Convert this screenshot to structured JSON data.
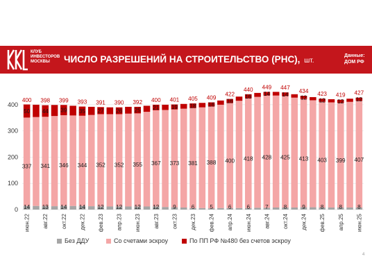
{
  "header": {
    "club_lines": [
      "КЛУБ",
      "ИНВЕСТОРОВ",
      "МОСКВЫ"
    ],
    "title": "ЧИСЛО РАЗРЕШЕНИЙ НА СТРОИТЕЛЬСТВО (РНС),",
    "unit": "шт.",
    "source_label": "Данные:",
    "source_value": "ДОМ РФ"
  },
  "page_number": "4",
  "colors": {
    "brand": "#c4161c",
    "bez_ddu": "#a6a6a6",
    "escrow": "#f4a6a6",
    "pp480": "#c00000",
    "total_label": "#c00000"
  },
  "chart_data": {
    "type": "bar",
    "stacked": true,
    "title": "ЧИСЛО РАЗРЕШЕНИЙ НА СТРОИТЕЛЬСТВО (РНС), шт.",
    "xlabel": "",
    "ylabel": "",
    "ylim": [
      0,
      450
    ],
    "yticks": [
      0,
      100,
      200,
      300,
      400
    ],
    "grid": true,
    "legend_position": "bottom",
    "categories": [
      "июн.22",
      "июл.22",
      "авг.22",
      "сен.22",
      "окт.22",
      "ноя.22",
      "дек.22",
      "янв.23",
      "фев.23",
      "мар.23",
      "апр.23",
      "май.23",
      "июн.23",
      "июл.23",
      "авг.23",
      "сен.23",
      "окт.23",
      "ноя.23",
      "дек.23",
      "янв.24",
      "фев.24",
      "мар.24",
      "апр.24",
      "май.24",
      "июн.24",
      "июл.24",
      "авг.24",
      "сен.24",
      "окт.24",
      "ноя.24",
      "дек.24",
      "янв.25",
      "фев.25",
      "мар.25",
      "апр.25",
      "май.25",
      "июн.25"
    ],
    "tick_labels_shown": [
      "июн.22",
      "авг.22",
      "окт.22",
      "дек.22",
      "фев.23",
      "апр.23",
      "июн.23",
      "авг.23",
      "окт.23",
      "дек.23",
      "фев.24",
      "апр.24",
      "июн.24",
      "авг.24",
      "окт.24",
      "дек.24",
      "фев.25",
      "апр.25",
      "июн.25"
    ],
    "series": [
      {
        "name": "Без ДДУ",
        "color": "#a6a6a6",
        "values": [
          14,
          14,
          13,
          13,
          14,
          14,
          14,
          13,
          12,
          12,
          12,
          12,
          12,
          12,
          12,
          10,
          9,
          8,
          6,
          6,
          5,
          6,
          6,
          6,
          6,
          7,
          7,
          8,
          8,
          8,
          9,
          9,
          8,
          8,
          8,
          8,
          8
        ]
      },
      {
        "name": "Со счетами эскроу",
        "color": "#f4a6a6",
        "values": [
          337,
          339,
          341,
          344,
          346,
          345,
          344,
          348,
          352,
          352,
          352,
          354,
          355,
          361,
          367,
          370,
          373,
          377,
          381,
          384,
          388,
          394,
          400,
          409,
          418,
          423,
          428,
          427,
          425,
          419,
          413,
          408,
          403,
          401,
          399,
          403,
          407
        ]
      },
      {
        "name": "По ПП РФ №480 без счетов эскроу",
        "color": "#c00000",
        "values": [
          50,
          47,
          44,
          42,
          39,
          37,
          35,
          31,
          27,
          26,
          26,
          26,
          25,
          23,
          21,
          20,
          19,
          18,
          18,
          17,
          16,
          16,
          16,
          16,
          16,
          15,
          14,
          14,
          14,
          13,
          12,
          12,
          12,
          12,
          12,
          12,
          12
        ]
      }
    ],
    "totals": [
      400,
      400,
      398,
      399,
      399,
      396,
      393,
      392,
      391,
      390,
      390,
      392,
      392,
      396,
      400,
      400,
      401,
      403,
      405,
      407,
      409,
      416,
      422,
      431,
      440,
      445,
      449,
      449,
      447,
      440,
      434,
      429,
      423,
      421,
      419,
      423,
      427
    ],
    "labels_shown_every": 2,
    "data_labels": {
      "totals": [
        400,
        398,
        399,
        393,
        391,
        390,
        392,
        400,
        401,
        405,
        409,
        422,
        440,
        449,
        447,
        434,
        423,
        419,
        427
      ],
      "bez_ddu": [
        14,
        13,
        14,
        14,
        12,
        12,
        12,
        12,
        9,
        6,
        5,
        6,
        6,
        7,
        8,
        9,
        8,
        8,
        8
      ],
      "escrow": [
        337,
        341,
        346,
        344,
        352,
        352,
        355,
        367,
        373,
        381,
        388,
        400,
        418,
        428,
        425,
        413,
        403,
        399,
        407
      ],
      "pp480": [
        50,
        44,
        39,
        35,
        27,
        26,
        25,
        21,
        19,
        18,
        16,
        16,
        16,
        14,
        14,
        12,
        12,
        12,
        12
      ]
    }
  }
}
